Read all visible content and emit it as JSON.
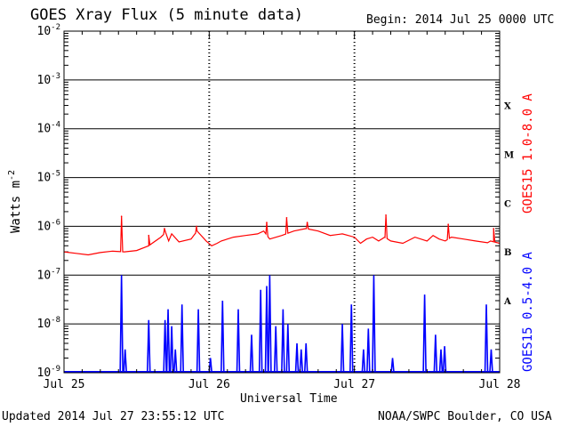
{
  "header": {
    "title": "GOES Xray Flux (5 minute data)",
    "begin": "Begin:  2014 Jul 25 0000 UTC"
  },
  "footer": {
    "updated": "Updated 2014 Jul 27 23:55:12 UTC",
    "credit": "NOAA/SWPC Boulder, CO USA"
  },
  "colors": {
    "long": "#ff0000",
    "short": "#0000ff",
    "grid": "#000000",
    "background": "#ffffff"
  },
  "chart_data": {
    "type": "line",
    "title": "GOES Xray Flux (5 minute data)",
    "xlabel": "Universal Time",
    "ylabel": "Watts m",
    "ylabel_sup": "-2",
    "log_scale": true,
    "ylim": [
      1e-09,
      0.01
    ],
    "xlim": [
      "2014 Jul 25 0000",
      "2014 Jul 28 0000"
    ],
    "x_ticks": [
      "Jul 25",
      "Jul 26",
      "Jul 27",
      "Jul 28"
    ],
    "y_ticks": [
      {
        "value": 1e-09,
        "base": "10",
        "exp": "-9"
      },
      {
        "value": 1e-08,
        "base": "10",
        "exp": "-8"
      },
      {
        "value": 1e-07,
        "base": "10",
        "exp": "-7"
      },
      {
        "value": 1e-06,
        "base": "10",
        "exp": "-6"
      },
      {
        "value": 1e-05,
        "base": "10",
        "exp": "-5"
      },
      {
        "value": 0.0001,
        "base": "10",
        "exp": "-4"
      },
      {
        "value": 0.001,
        "base": "10",
        "exp": "-3"
      },
      {
        "value": 0.01,
        "base": "10",
        "exp": "-2"
      }
    ],
    "flare_classes": [
      {
        "label": "X",
        "flux": 0.0003
      },
      {
        "label": "M",
        "flux": 3e-05
      },
      {
        "label": "C",
        "flux": 3e-06
      },
      {
        "label": "B",
        "flux": 3e-07
      },
      {
        "label": "A",
        "flux": 3e-08
      }
    ],
    "grid": true,
    "series": [
      {
        "name": "GOES15 1.0-8.0 A",
        "color": "#ff0000",
        "x_hours": [
          0,
          2,
          4,
          6,
          8,
          10,
          12,
          14,
          16,
          16.8,
          17.3,
          17.8,
          19,
          21,
          22,
          23.5,
          24.4,
          25.3,
          26,
          28,
          30,
          32,
          33,
          34,
          36,
          38,
          40,
          42,
          44,
          46,
          48,
          49,
          50,
          51,
          52,
          53,
          54,
          56,
          58,
          60,
          61,
          62,
          63,
          64,
          66,
          68,
          70,
          70.5,
          71,
          72
        ],
        "values": [
          3e-07,
          2.8e-07,
          2.6e-07,
          2.9e-07,
          3.1e-07,
          3e-07,
          3.2e-07,
          4e-07,
          6e-07,
          7.5e-07,
          5e-07,
          7e-07,
          4.8e-07,
          5.5e-07,
          8e-07,
          5e-07,
          4e-07,
          4.5e-07,
          5e-07,
          6e-07,
          6.5e-07,
          7e-07,
          8e-07,
          5.5e-07,
          6.5e-07,
          8e-07,
          9e-07,
          8e-07,
          6.5e-07,
          7e-07,
          6e-07,
          4.5e-07,
          5.5e-07,
          6e-07,
          5e-07,
          6e-07,
          5e-07,
          4.5e-07,
          6e-07,
          5e-07,
          6.5e-07,
          5.5e-07,
          5e-07,
          6e-07,
          5.5e-07,
          5e-07,
          4.6e-07,
          5e-07,
          4.8e-07,
          4.5e-07
        ],
        "spikes": [
          {
            "x": 9.5,
            "value": 1.6e-06
          },
          {
            "x": 14.0,
            "value": 6.5e-07
          },
          {
            "x": 16.6,
            "value": 9e-07
          },
          {
            "x": 21.9,
            "value": 1e-06
          },
          {
            "x": 33.5,
            "value": 1.2e-06
          },
          {
            "x": 36.8,
            "value": 1.5e-06
          },
          {
            "x": 40.2,
            "value": 1.2e-06
          },
          {
            "x": 53.2,
            "value": 1.7e-06
          },
          {
            "x": 63.5,
            "value": 1.1e-06
          },
          {
            "x": 71.0,
            "value": 9e-07
          }
        ]
      },
      {
        "name": "GOES15 0.5-4.0 A",
        "color": "#0000ff",
        "baseline": 1e-09,
        "spikes": [
          {
            "x": 9.5,
            "value": 1e-07
          },
          {
            "x": 10.1,
            "value": 3e-09
          },
          {
            "x": 14.0,
            "value": 1.2e-08
          },
          {
            "x": 16.7,
            "value": 1.2e-08
          },
          {
            "x": 17.2,
            "value": 2e-08
          },
          {
            "x": 17.8,
            "value": 9e-09
          },
          {
            "x": 18.4,
            "value": 3e-09
          },
          {
            "x": 19.5,
            "value": 2.5e-08
          },
          {
            "x": 22.2,
            "value": 2e-08
          },
          {
            "x": 24.2,
            "value": 2e-09
          },
          {
            "x": 26.2,
            "value": 3e-08
          },
          {
            "x": 28.8,
            "value": 2e-08
          },
          {
            "x": 31.0,
            "value": 6e-09
          },
          {
            "x": 32.5,
            "value": 5e-08
          },
          {
            "x": 33.5,
            "value": 6e-08
          },
          {
            "x": 34.0,
            "value": 1e-07
          },
          {
            "x": 35.0,
            "value": 9e-09
          },
          {
            "x": 36.2,
            "value": 2e-08
          },
          {
            "x": 37.0,
            "value": 1e-08
          },
          {
            "x": 38.5,
            "value": 4e-09
          },
          {
            "x": 39.2,
            "value": 3e-09
          },
          {
            "x": 40.0,
            "value": 4e-09
          },
          {
            "x": 46.0,
            "value": 1e-08
          },
          {
            "x": 47.5,
            "value": 2.5e-08
          },
          {
            "x": 49.5,
            "value": 3e-09
          },
          {
            "x": 50.3,
            "value": 8e-09
          },
          {
            "x": 51.2,
            "value": 1e-07
          },
          {
            "x": 54.3,
            "value": 2e-09
          },
          {
            "x": 59.6,
            "value": 4e-08
          },
          {
            "x": 61.4,
            "value": 6e-09
          },
          {
            "x": 62.3,
            "value": 3e-09
          },
          {
            "x": 62.9,
            "value": 3.5e-09
          },
          {
            "x": 69.8,
            "value": 2.5e-08
          },
          {
            "x": 70.6,
            "value": 3e-09
          }
        ]
      }
    ]
  }
}
